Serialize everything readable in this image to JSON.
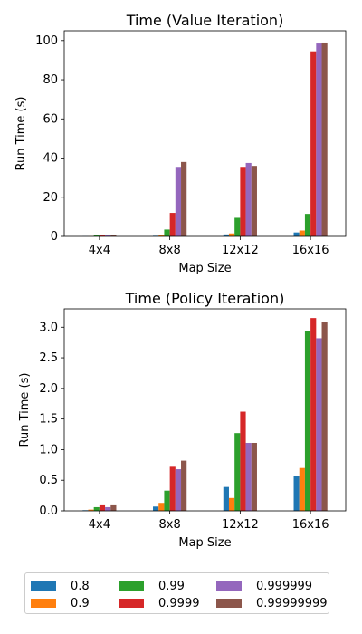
{
  "chart_data": [
    {
      "type": "bar",
      "title": "Time (Value Iteration)",
      "xlabel": "Map Size",
      "ylabel": "Run Time (s)",
      "categories": [
        "4x4",
        "8x8",
        "12x12",
        "16x16"
      ],
      "ylim": [
        0,
        105
      ],
      "yticks": [
        0,
        20,
        40,
        60,
        80,
        100
      ],
      "ytick_labels": [
        "0",
        "20",
        "40",
        "60",
        "80",
        "100"
      ],
      "series": [
        {
          "name": "0.8",
          "values": [
            0.1,
            0.3,
            1.0,
            2.0
          ]
        },
        {
          "name": "0.9",
          "values": [
            0.1,
            0.5,
            1.5,
            3.0
          ]
        },
        {
          "name": "0.99",
          "values": [
            0.6,
            3.5,
            9.5,
            11.5
          ]
        },
        {
          "name": "0.9999",
          "values": [
            0.8,
            12.0,
            35.5,
            94.5
          ]
        },
        {
          "name": "0.999999",
          "values": [
            0.8,
            35.5,
            37.5,
            98.5
          ]
        },
        {
          "name": "0.99999999",
          "values": [
            0.8,
            38.0,
            36.0,
            99.0
          ]
        }
      ]
    },
    {
      "type": "bar",
      "title": "Time (Policy Iteration)",
      "xlabel": "Map Size",
      "ylabel": "Run Time (s)",
      "categories": [
        "4x4",
        "8x8",
        "12x12",
        "16x16"
      ],
      "ylim": [
        0,
        3.3
      ],
      "yticks": [
        0,
        0.5,
        1.0,
        1.5,
        2.0,
        2.5,
        3.0
      ],
      "ytick_labels": [
        "0.0",
        "0.5",
        "1.0",
        "1.5",
        "2.0",
        "2.5",
        "3.0"
      ],
      "series": [
        {
          "name": "0.8",
          "values": [
            0.01,
            0.07,
            0.39,
            0.57
          ]
        },
        {
          "name": "0.9",
          "values": [
            0.02,
            0.13,
            0.21,
            0.7
          ]
        },
        {
          "name": "0.99",
          "values": [
            0.06,
            0.33,
            1.27,
            2.93
          ]
        },
        {
          "name": "0.9999",
          "values": [
            0.09,
            0.72,
            1.62,
            3.15
          ]
        },
        {
          "name": "0.999999",
          "values": [
            0.06,
            0.68,
            1.11,
            2.82
          ]
        },
        {
          "name": "0.99999999",
          "values": [
            0.09,
            0.82,
            1.11,
            3.09
          ]
        }
      ]
    }
  ],
  "legend": {
    "placement": "bottom",
    "columns": 3,
    "entries": [
      "0.8",
      "0.9",
      "0.99",
      "0.9999",
      "0.999999",
      "0.99999999"
    ]
  },
  "colors": [
    "#1f77b4",
    "#ff7f0e",
    "#2ca02c",
    "#d62728",
    "#9467bd",
    "#8c564b"
  ]
}
